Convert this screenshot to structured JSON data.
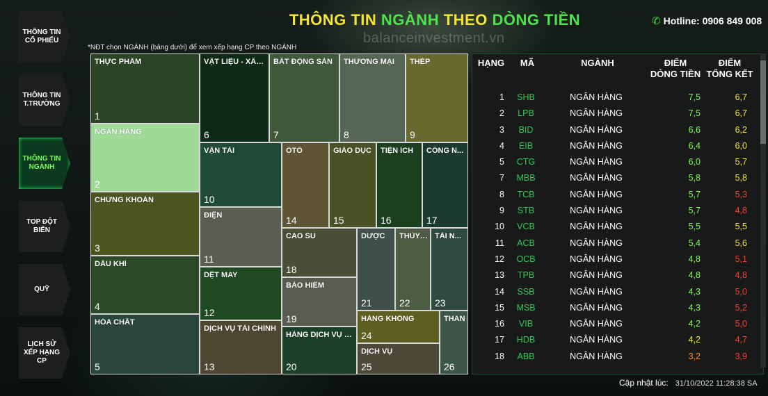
{
  "header": {
    "title_part1": "THÔNG TIN ",
    "title_part2": "NGÀNH",
    "title_part3": " THEO ",
    "title_part4": "DÒNG TIỀN",
    "watermark": "balanceinvestment.vn",
    "hotline": "Hotline: 0906 849 008"
  },
  "sidebar": {
    "items": [
      {
        "label": "THÔNG TIN CỔ PHIẾU",
        "active": false
      },
      {
        "label": "THÔNG TIN T.TRƯỜNG",
        "active": false
      },
      {
        "label": "THÔNG TIN NGÀNH",
        "active": true
      },
      {
        "label": "TOP ĐỘT BIẾN",
        "active": false
      },
      {
        "label": "QUỸ",
        "active": false
      },
      {
        "label": "LỊCH SỬ XẾP HẠNG CP",
        "active": false
      }
    ]
  },
  "note": "*NĐT chọn NGÀNH (bảng dưới) để xem xếp hạng CP theo NGÀNH",
  "treemap": {
    "cells": [
      {
        "name": "THỰC PHẨM",
        "index": "1",
        "color": "#2b4425"
      },
      {
        "name": "NGÂN HÀNG",
        "index": "2",
        "color": "#9fdb97"
      },
      {
        "name": "CHỨNG KHOÁN",
        "index": "3",
        "color": "#4f5520"
      },
      {
        "name": "DẦU KHÍ",
        "index": "4",
        "color": "#2d4a28"
      },
      {
        "name": "HÓA CHẤT",
        "index": "5",
        "color": "#2b463e"
      },
      {
        "name": "VẬT LIỆU - XÂY ...",
        "index": "6",
        "color": "#0c2a16"
      },
      {
        "name": "BẤT ĐỘNG SẢN",
        "index": "7",
        "color": "#41593b"
      },
      {
        "name": "THƯƠNG MẠI",
        "index": "8",
        "color": "#556754"
      },
      {
        "name": "THÉP",
        "index": "9",
        "color": "#666a2e"
      },
      {
        "name": "VẬN TẢI",
        "index": "10",
        "color": "#1f4a36"
      },
      {
        "name": "ĐIỆN",
        "index": "11",
        "color": "#5a5e50"
      },
      {
        "name": "DỆT MAY",
        "index": "12",
        "color": "#1f4a22"
      },
      {
        "name": "DỊCH VỤ TÀI CHÍNH",
        "index": "13",
        "color": "#4d4731"
      },
      {
        "name": "ÔTÔ",
        "index": "14",
        "color": "#5e5535"
      },
      {
        "name": "GIÁO DỤC",
        "index": "15",
        "color": "#4a5127"
      },
      {
        "name": "TIỆN ÍCH",
        "index": "16",
        "color": "#1c401f"
      },
      {
        "name": "CÔNG N...",
        "index": "17",
        "color": "#1c3b2f"
      },
      {
        "name": "CAO SU",
        "index": "18",
        "color": "#4b4e36"
      },
      {
        "name": "BẢO HIỂM",
        "index": "19",
        "color": "#5a5a4e"
      },
      {
        "name": "HÀNG DỊCH VỤ V...",
        "index": "20",
        "color": "#1c3f27"
      },
      {
        "name": "DƯỢC",
        "index": "21",
        "color": "#3f504b"
      },
      {
        "name": "THỦY ...",
        "index": "22",
        "color": "#4f5c44"
      },
      {
        "name": "TÀI N...",
        "index": "23",
        "color": "#2f4a40"
      },
      {
        "name": "HÀNG KHÔNG",
        "index": "24",
        "color": "#5d5f20"
      },
      {
        "name": "DỊCH VỤ",
        "index": "25",
        "color": "#4b4a38"
      },
      {
        "name": "THAN",
        "index": "26",
        "color": "#3e5549"
      }
    ]
  },
  "table": {
    "headers": {
      "rank": "HẠNG",
      "code": "MÃ",
      "industry": "NGÀNH",
      "flow_line1": "ĐIỂM",
      "flow_line2": "DÒNG TIỀN",
      "total_line1": "ĐIỂM",
      "total_line2": "TỔNG KẾT"
    },
    "rows": [
      {
        "rank": "1",
        "code": "SHB",
        "industry": "NGÂN HÀNG",
        "flow": "7,5",
        "total": "6,7",
        "total_color": "#f5e430"
      },
      {
        "rank": "2",
        "code": "LPB",
        "industry": "NGÂN HÀNG",
        "flow": "7,5",
        "total": "6,7",
        "total_color": "#f5e430"
      },
      {
        "rank": "3",
        "code": "BID",
        "industry": "NGÂN HÀNG",
        "flow": "6,6",
        "total": "6,2",
        "total_color": "#f5e430"
      },
      {
        "rank": "4",
        "code": "EIB",
        "industry": "NGÂN HÀNG",
        "flow": "6,4",
        "total": "6,0",
        "total_color": "#f5e430"
      },
      {
        "rank": "5",
        "code": "CTG",
        "industry": "NGÂN HÀNG",
        "flow": "6,0",
        "total": "5,7",
        "total_color": "#f5e430"
      },
      {
        "rank": "7",
        "code": "MBB",
        "industry": "NGÂN HÀNG",
        "flow": "5,8",
        "total": "5,8",
        "total_color": "#f5e430"
      },
      {
        "rank": "8",
        "code": "TCB",
        "industry": "NGÂN HÀNG",
        "flow": "5,7",
        "total": "5,3",
        "total_color": "#ff3b30"
      },
      {
        "rank": "9",
        "code": "STB",
        "industry": "NGÂN HÀNG",
        "flow": "5,7",
        "total": "4,8",
        "total_color": "#ff3b30"
      },
      {
        "rank": "10",
        "code": "VCB",
        "industry": "NGÂN HÀNG",
        "flow": "5,5",
        "total": "5,5",
        "total_color": "#f5e430"
      },
      {
        "rank": "11",
        "code": "ACB",
        "industry": "NGÂN HÀNG",
        "flow": "5,4",
        "total": "5,6",
        "total_color": "#f5e430"
      },
      {
        "rank": "12",
        "code": "OCB",
        "industry": "NGÂN HÀNG",
        "flow": "4,8",
        "total": "5,1",
        "total_color": "#ff3b30"
      },
      {
        "rank": "13",
        "code": "TPB",
        "industry": "NGÂN HÀNG",
        "flow": "4,8",
        "total": "4,8",
        "total_color": "#ff3b30"
      },
      {
        "rank": "14",
        "code": "SSB",
        "industry": "NGÂN HÀNG",
        "flow": "4,3",
        "total": "5,0",
        "total_color": "#ff3b30"
      },
      {
        "rank": "15",
        "code": "MSB",
        "industry": "NGÂN HÀNG",
        "flow": "4,3",
        "total": "5,2",
        "total_color": "#ff3b30"
      },
      {
        "rank": "16",
        "code": "VIB",
        "industry": "NGÂN HÀNG",
        "flow": "4,2",
        "total": "5,0",
        "total_color": "#ff3b30"
      },
      {
        "rank": "17",
        "code": "HDB",
        "industry": "NGÂN HÀNG",
        "flow": "4,2",
        "total": "4,7",
        "total_color": "#ff3b30",
        "flow_color": "#f5e430"
      },
      {
        "rank": "18",
        "code": "ABB",
        "industry": "NGÂN HÀNG",
        "flow": "3,2",
        "total": "3,9",
        "total_color": "#ff3b30",
        "flow_color": "#ff8c1a"
      }
    ]
  },
  "footer": {
    "updated_label": "Cập nhật lúc:",
    "updated_value": "31/10/2022 11:28:38 SA"
  }
}
